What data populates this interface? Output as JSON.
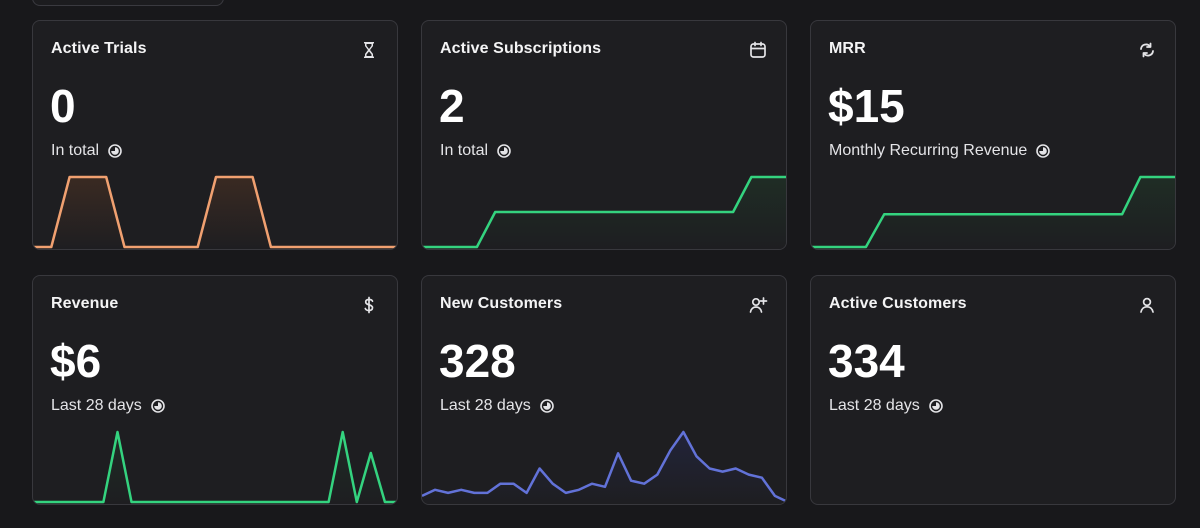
{
  "cards": [
    {
      "title": "Active Trials",
      "value": "0",
      "subtitle": "In total",
      "icon": "hourglass-icon",
      "chart_color": "#f0a070",
      "fill_color": "#3a2a22",
      "series": [
        0,
        0,
        1,
        1,
        1,
        0,
        0,
        0,
        0,
        0,
        1,
        1,
        1,
        0,
        0,
        0,
        0,
        0,
        0,
        0,
        0
      ]
    },
    {
      "title": "Active Subscriptions",
      "value": "2",
      "subtitle": "In total",
      "icon": "calendar-icon",
      "chart_color": "#34d37f",
      "fill_color": "#1f2d25",
      "series": [
        0,
        0,
        0,
        0,
        1,
        1,
        1,
        1,
        1,
        1,
        1,
        1,
        1,
        1,
        1,
        1,
        1,
        1,
        2,
        2,
        2
      ]
    },
    {
      "title": "MRR",
      "value": "$15",
      "subtitle": "Monthly Recurring Revenue",
      "icon": "refresh-icon",
      "chart_color": "#34d37f",
      "fill_color": "#1f2d25",
      "series": [
        0,
        0,
        0,
        0,
        7,
        7,
        7,
        7,
        7,
        7,
        7,
        7,
        7,
        7,
        7,
        7,
        7,
        7,
        15,
        15,
        15
      ]
    },
    {
      "title": "Revenue",
      "value": "$6",
      "subtitle": "Last 28 days",
      "icon": "dollar-icon",
      "chart_color": "#34d37f",
      "fill_color": "#1f2d25",
      "series": [
        0,
        0,
        0,
        0,
        0,
        0,
        1,
        0,
        0,
        0,
        0,
        0,
        0,
        0,
        0,
        0,
        0,
        0,
        0,
        0,
        0,
        0,
        1,
        0,
        0.7,
        0,
        0
      ]
    },
    {
      "title": "New Customers",
      "value": "328",
      "subtitle": "Last 28 days",
      "icon": "user-plus-icon",
      "chart_color": "#6272d8",
      "fill_color": "#22243a",
      "series": [
        2,
        4,
        3,
        4,
        3,
        3,
        6,
        6,
        3,
        11,
        6,
        3,
        4,
        6,
        5,
        16,
        7,
        6,
        9,
        17,
        23,
        15,
        11,
        10,
        11,
        9,
        8,
        2,
        0
      ]
    },
    {
      "title": "Active Customers",
      "value": "334",
      "subtitle": "Last 28 days",
      "icon": "user-icon",
      "chart_color": "#6272d8",
      "fill_color": "#22243a",
      "series": []
    }
  ]
}
